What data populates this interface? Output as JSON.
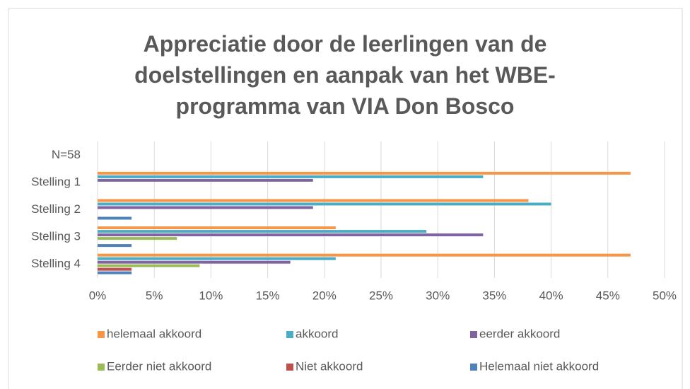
{
  "chart_data": {
    "type": "hbar",
    "title": "Appreciatie door de leerlingen van de doelstellingen en aanpak van het WBE-programma van VIA Don Bosco",
    "categories": [
      "N=58",
      "Stelling 1",
      "Stelling 2",
      "Stelling 3",
      "Stelling 4"
    ],
    "series": [
      {
        "name": "helemaal akkoord",
        "color": "#f79646",
        "values": [
          null,
          47,
          38,
          21,
          47
        ]
      },
      {
        "name": "akkoord",
        "color": "#4bacc6",
        "values": [
          null,
          34,
          40,
          29,
          21
        ]
      },
      {
        "name": "eerder akkoord",
        "color": "#8064a2",
        "values": [
          null,
          19,
          19,
          34,
          17
        ]
      },
      {
        "name": "Eerder niet akkoord",
        "color": "#9bbb59",
        "values": [
          null,
          0,
          0,
          7,
          9
        ]
      },
      {
        "name": "Niet akkoord",
        "color": "#c0504d",
        "values": [
          null,
          0,
          0,
          0,
          3
        ]
      },
      {
        "name": "Helemaal niet akkoord",
        "color": "#4f81bd",
        "values": [
          null,
          0,
          3,
          3,
          3
        ]
      }
    ],
    "xlim": [
      0,
      50
    ],
    "xticks": [
      {
        "value": 0,
        "label": "0%"
      },
      {
        "value": 5,
        "label": "5%"
      },
      {
        "value": 10,
        "label": "10%"
      },
      {
        "value": 15,
        "label": "15%"
      },
      {
        "value": 20,
        "label": "20%"
      },
      {
        "value": 25,
        "label": "25%"
      },
      {
        "value": 30,
        "label": "30%"
      },
      {
        "value": 35,
        "label": "35%"
      },
      {
        "value": 40,
        "label": "40%"
      },
      {
        "value": 45,
        "label": "45%"
      },
      {
        "value": 50,
        "label": "50%"
      }
    ],
    "grid": true,
    "legend": "bottom"
  }
}
